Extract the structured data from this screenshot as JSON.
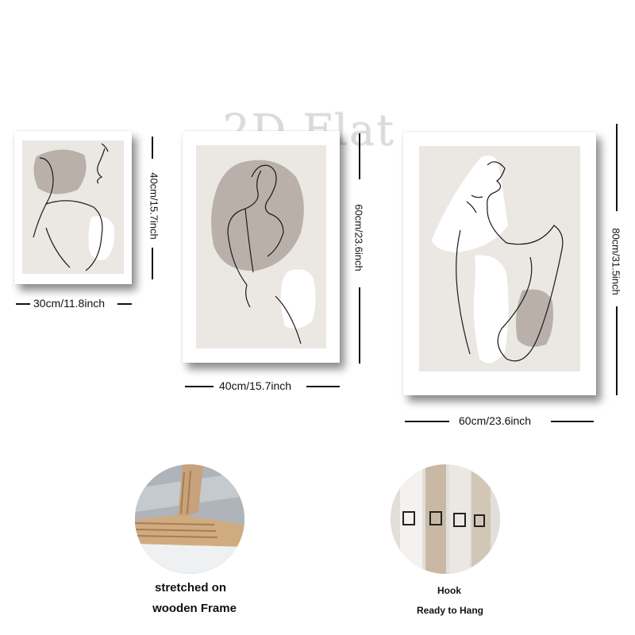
{
  "watermark": "2D Flat",
  "frames": [
    {
      "name": "small",
      "width_label": "30cm/11.8inch",
      "height_label": "40cm/15.7inch"
    },
    {
      "name": "medium",
      "width_label": "40cm/15.7inch",
      "height_label": "60cm/23.6inch"
    },
    {
      "name": "large",
      "width_label": "60cm/23.6inch",
      "height_label": "80cm/31.5inch"
    }
  ],
  "features": [
    {
      "line1": "stretched on",
      "line2": "wooden Frame"
    },
    {
      "line1": "Hook",
      "line2": "Ready to Hang"
    }
  ],
  "colors": {
    "mat": "#ebe7e3",
    "blob": "#b9b0aa",
    "line": "#1a1a1a",
    "shadow": "#444444"
  }
}
